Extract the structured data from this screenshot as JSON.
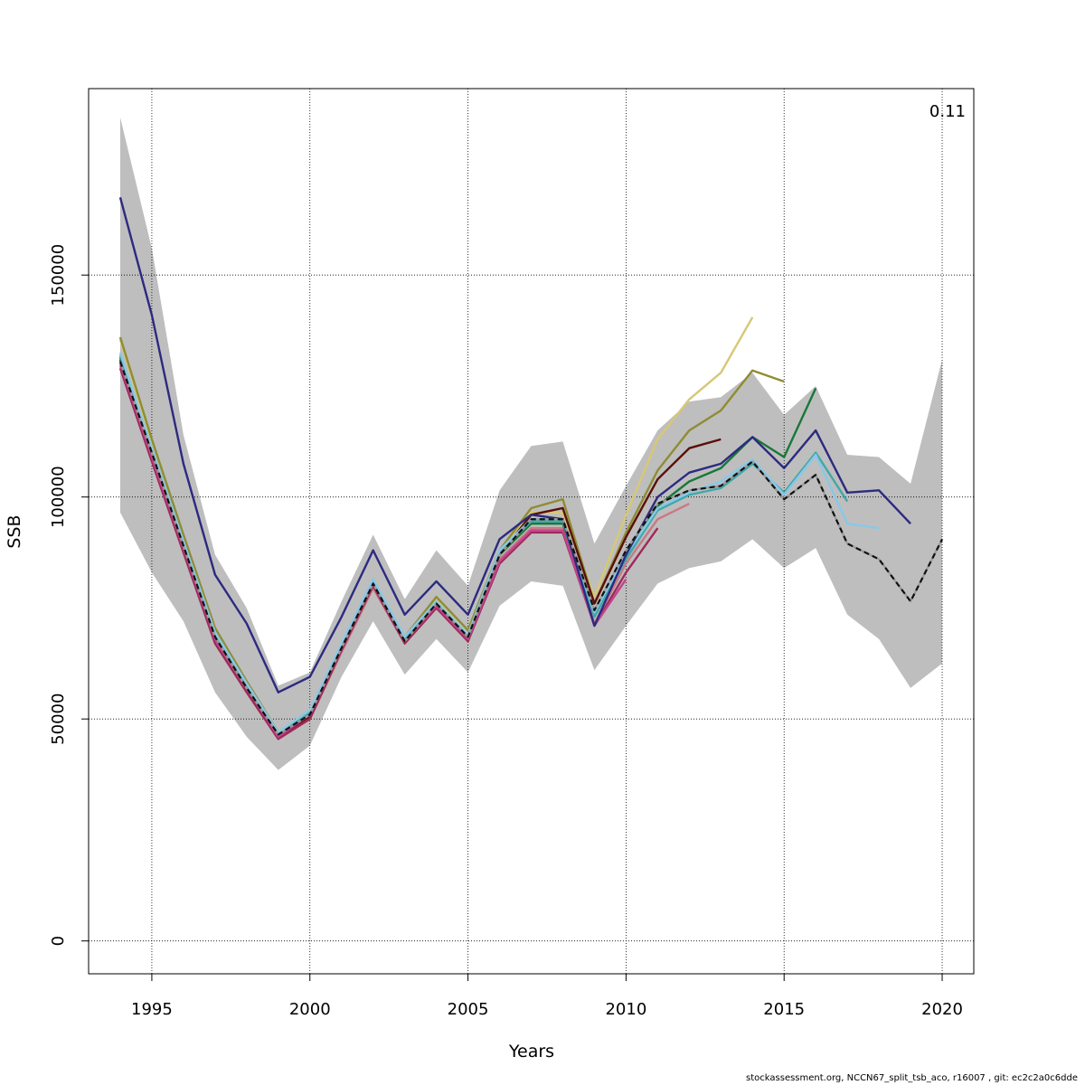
{
  "chart_data": {
    "type": "line",
    "xlabel": "Years",
    "ylabel": "SSB",
    "xlim": [
      1993,
      2021
    ],
    "ylim": [
      -7400,
      192000
    ],
    "x_ticks": [
      1995,
      2000,
      2005,
      2010,
      2015,
      2020
    ],
    "y_ticks": [
      0,
      50000,
      100000,
      150000
    ],
    "grid": true,
    "annotation": "0.11",
    "annotation_position": "top-right",
    "band_color": "#bebebe",
    "band": {
      "x": [
        1994,
        1995,
        1996,
        1997,
        1998,
        1999,
        2000,
        2001,
        2002,
        2003,
        2004,
        2005,
        2006,
        2007,
        2008,
        2009,
        2010,
        2011,
        2012,
        2013,
        2014,
        2015,
        2016,
        2017,
        2018,
        2019,
        2020
      ],
      "upper": [
        185500,
        156000,
        114000,
        87000,
        75000,
        57500,
        60500,
        76500,
        91500,
        77000,
        88000,
        80000,
        101500,
        111500,
        112500,
        89500,
        102500,
        115000,
        121500,
        122500,
        128000,
        118500,
        125000,
        109500,
        109000,
        103000,
        131000
      ],
      "lower": [
        96500,
        83000,
        72000,
        56000,
        46000,
        38500,
        44000,
        59500,
        72000,
        60000,
        68000,
        60500,
        75500,
        81000,
        80000,
        61000,
        71000,
        80500,
        84000,
        85500,
        90500,
        84000,
        88500,
        73500,
        68000,
        57000,
        62500
      ]
    },
    "series": [
      {
        "color": "#d7c875",
        "dashed": false,
        "start": 1994,
        "values": [
          135500,
          112000,
          91000,
          70000,
          58000,
          46500,
          51000,
          66000,
          80000,
          67000,
          77000,
          69000,
          87500,
          96500,
          96500,
          77500,
          96000,
          113000,
          122000,
          128000,
          140500
        ]
      },
      {
        "color": "#8f8c33",
        "dashed": false,
        "start": 1994,
        "values": [
          136000,
          113000,
          91500,
          70500,
          58500,
          47000,
          51500,
          66500,
          80500,
          68500,
          77500,
          70000,
          88000,
          97500,
          99500,
          76000,
          92000,
          106000,
          115000,
          119500,
          128500,
          126000
        ]
      },
      {
        "color": "#5a0f0a",
        "dashed": false,
        "start": 1994,
        "values": [
          131000,
          110000,
          89000,
          68500,
          57000,
          46000,
          50500,
          65500,
          80000,
          67500,
          76000,
          68000,
          87000,
          96000,
          97500,
          76000,
          91000,
          104000,
          111000,
          113000
        ]
      },
      {
        "color": "#c87a85",
        "dashed": false,
        "start": 1994,
        "values": [
          129500,
          108500,
          88000,
          67500,
          56500,
          45500,
          50000,
          65000,
          79500,
          67000,
          75500,
          67500,
          86000,
          93000,
          93000,
          71500,
          85000,
          95000,
          98500
        ]
      },
      {
        "color": "#a0285a",
        "dashed": false,
        "start": 1994,
        "values": [
          129000,
          108000,
          87500,
          67000,
          56000,
          45500,
          50000,
          65500,
          80000,
          67000,
          75000,
          67500,
          85000,
          92000,
          92000,
          71000,
          83000,
          93000
        ]
      },
      {
        "color": "#c0448c",
        "dashed": false,
        "start": 1994,
        "values": [
          130000,
          109000,
          88500,
          68000,
          57000,
          46000,
          51000,
          66000,
          81000,
          67500,
          75500,
          68000,
          85500,
          92500,
          92500,
          71000,
          81500
        ]
      },
      {
        "color": "#187838",
        "dashed": false,
        "start": 1994,
        "values": [
          131500,
          110500,
          89500,
          69000,
          57500,
          46500,
          51500,
          66500,
          81000,
          68000,
          76000,
          68500,
          87000,
          94000,
          94000,
          73500,
          86500,
          98000,
          103500,
          106500,
          113500,
          109000,
          124500
        ]
      },
      {
        "color": "#40a8a8",
        "dashed": false,
        "start": 1994,
        "values": [
          132000,
          111000,
          90000,
          69000,
          57500,
          46500,
          51500,
          66500,
          81000,
          68000,
          76500,
          68500,
          87500,
          94500,
          94500,
          73000,
          86000,
          97000,
          100500,
          102000,
          107500,
          101000,
          110000,
          99000
        ]
      },
      {
        "color": "#88c8e8",
        "dashed": false,
        "start": 1994,
        "values": [
          132500,
          111000,
          90000,
          69500,
          58000,
          47000,
          52000,
          67000,
          81500,
          68500,
          76500,
          69000,
          88000,
          95000,
          95000,
          74000,
          87000,
          97500,
          101000,
          103500,
          108500,
          100500,
          109500,
          94000,
          93000
        ]
      },
      {
        "color": "#2c2a80",
        "dashed": false,
        "start": 1994,
        "values": [
          167500,
          141000,
          107500,
          82500,
          71500,
          56000,
          59500,
          73000,
          88000,
          73500,
          81000,
          73500,
          90500,
          96000,
          95000,
          71000,
          87000,
          100000,
          105500,
          107500,
          113500,
          106500,
          115000,
          101000,
          101500,
          94000
        ]
      },
      {
        "color": "#111111",
        "dashed": true,
        "start": 1994,
        "values": [
          130500,
          110000,
          89000,
          68500,
          57000,
          46500,
          51000,
          66000,
          80500,
          67500,
          76000,
          68500,
          87000,
          95000,
          95000,
          74500,
          88000,
          98500,
          101500,
          102500,
          108000,
          99500,
          105000,
          89500,
          86000,
          76500,
          90500
        ]
      }
    ]
  },
  "footer": "stockassessment.org, NCCN67_split_tsb_aco, r16007 , git: ec2c2a0c6dde"
}
